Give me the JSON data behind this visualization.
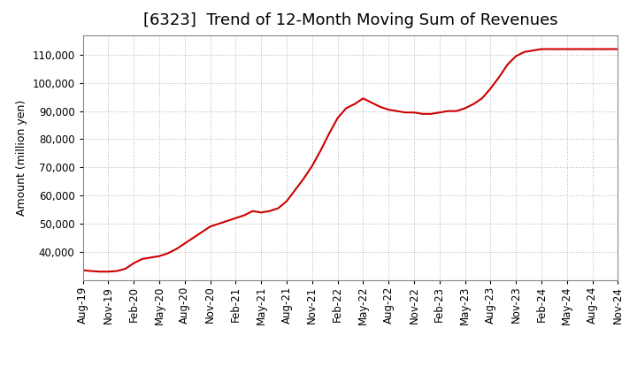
{
  "title": "[6323]  Trend of 12-Month Moving Sum of Revenues",
  "ylabel": "Amount (million yen)",
  "line_color": "#cc0000",
  "background_color": "#ffffff",
  "plot_bg_color": "#ffffff",
  "grid_color": "#999999",
  "xlabels": [
    "Aug-19",
    "Nov-19",
    "Feb-20",
    "May-20",
    "Aug-20",
    "Nov-20",
    "Feb-21",
    "May-21",
    "Aug-21",
    "Nov-21",
    "Feb-22",
    "May-22",
    "Aug-22",
    "Nov-22",
    "Feb-23",
    "May-23",
    "Aug-23",
    "Nov-23",
    "Feb-24",
    "May-24",
    "Aug-24",
    "Nov-24"
  ],
  "data_x": [
    0,
    1,
    2,
    3,
    4,
    5,
    6,
    7,
    8,
    9,
    10,
    11,
    12,
    13,
    14,
    15,
    16,
    17,
    18,
    19,
    20,
    21,
    22,
    23,
    24,
    25,
    26,
    27,
    28,
    29,
    30,
    31,
    32,
    33,
    34,
    35,
    36,
    37,
    38,
    39,
    40,
    41,
    42,
    43,
    44,
    45,
    46,
    47,
    48,
    49,
    50,
    51,
    52,
    53,
    54,
    55,
    56,
    57,
    58,
    59,
    60,
    61,
    62,
    63
  ],
  "data_y": [
    33500,
    33200,
    33000,
    33000,
    33200,
    34000,
    36000,
    37500,
    38000,
    38500,
    39500,
    41000,
    43000,
    45000,
    47000,
    49000,
    50000,
    51000,
    52000,
    53000,
    54500,
    54000,
    54500,
    55500,
    58000,
    62000,
    66000,
    70500,
    76000,
    82000,
    87500,
    91000,
    92500,
    94500,
    93000,
    91500,
    90500,
    90000,
    89500,
    89500,
    89000,
    89000,
    89500,
    90000,
    90000,
    91000,
    92500,
    94500,
    98000,
    102000,
    106500,
    109500,
    111000,
    111500,
    112000,
    112000,
    112000,
    112000,
    112000,
    112000,
    112000,
    112000,
    112000,
    112000
  ],
  "x_tick_positions": [
    0,
    3,
    6,
    9,
    12,
    15,
    18,
    21,
    24,
    27,
    30,
    33,
    36,
    39,
    42,
    45,
    48,
    51,
    54,
    57,
    60,
    63
  ],
  "ylim": [
    30000,
    117000
  ],
  "yticks": [
    40000,
    50000,
    60000,
    70000,
    80000,
    90000,
    100000,
    110000
  ],
  "title_fontsize": 13,
  "axis_fontsize": 9,
  "tick_fontsize": 8.5
}
